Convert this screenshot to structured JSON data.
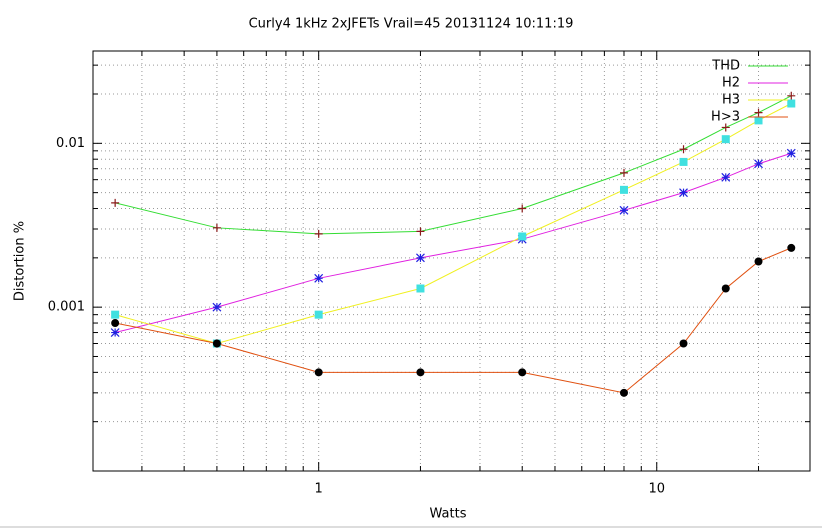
{
  "chart_data": {
    "type": "line",
    "title": "Curly4 1kHz 2xJFETs Vrail=45 20131124 10:11:19",
    "xlabel": "Watts",
    "ylabel": "Distortion %",
    "x": [
      0.25,
      0.5,
      1,
      2,
      4,
      8,
      12,
      16,
      20,
      25
    ],
    "xlog": true,
    "ylog": true,
    "xlim": [
      0.215,
      28.4
    ],
    "ylim": [
      0.0001,
      0.0366
    ],
    "xticks": [
      1,
      10
    ],
    "yticks": [
      0.001,
      0.01
    ],
    "xminorticks": [
      0.3,
      0.4,
      0.5,
      0.6,
      0.7,
      0.8,
      0.9,
      2,
      3,
      4,
      5,
      6,
      7,
      8,
      9,
      20
    ],
    "yminorticks": [
      0.0002,
      0.0003,
      0.0004,
      0.0005,
      0.0006,
      0.0007,
      0.0008,
      0.0009,
      0.002,
      0.003,
      0.004,
      0.005,
      0.006,
      0.007,
      0.008,
      0.009,
      0.02,
      0.03
    ],
    "grid": true,
    "legend": "top-right",
    "series": [
      {
        "name": "THD",
        "color": "#33dd33",
        "marker": "plus",
        "marker_color": "#8b1a1a",
        "values": [
          0.00433,
          0.00305,
          0.0028,
          0.0029,
          0.004,
          0.0066,
          0.0092,
          0.0125,
          0.0154,
          0.0195
        ]
      },
      {
        "name": "H2",
        "color": "#e020e0",
        "marker": "star",
        "marker_color": "#2020e0",
        "values": [
          0.0007,
          0.001,
          0.0015,
          0.002,
          0.0026,
          0.0039,
          0.005,
          0.0062,
          0.0075,
          0.0087
        ]
      },
      {
        "name": "H3",
        "color": "#f0f020",
        "marker": "square",
        "marker_color": "#40e0e0",
        "values": [
          0.0009,
          0.0006,
          0.0009,
          0.0013,
          0.0027,
          0.0052,
          0.0077,
          0.0106,
          0.0138,
          0.0175
        ]
      },
      {
        "name": "H>3",
        "color": "#e05010",
        "marker": "circle",
        "marker_color": "#000000",
        "values": [
          0.0008,
          0.0006,
          0.0004,
          0.0004,
          0.0004,
          0.0003,
          0.0006,
          0.0013,
          0.0019,
          0.0023
        ]
      }
    ]
  }
}
